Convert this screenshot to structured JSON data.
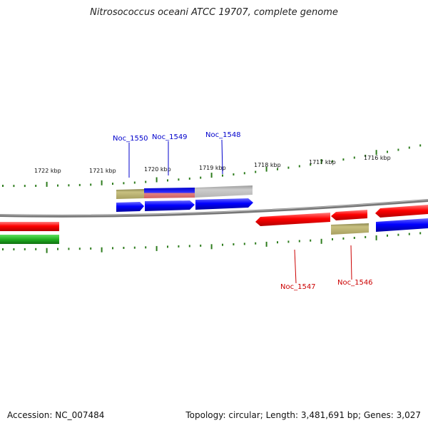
{
  "title": "Nitrosococcus oceani ATCC 19707, complete genome",
  "accession": "Accession: NC_007484",
  "genome_info": "Topology: circular; Length: 3,481,691 bp; Genes: 3,027",
  "colors": {
    "forward_label": "#0000cc",
    "reverse_label": "#cc0000",
    "tick": "#2e7d1e",
    "backbone": "#888888"
  },
  "scale_labels": [
    "1722 kbp",
    "1721 kbp",
    "1720 kbp",
    "1719 kbp",
    "1718 kbp",
    "1717 kbp",
    "1716 kbp"
  ],
  "gene_labels_top": [
    "Noc_1550",
    "Noc_1549",
    "Noc_1548"
  ],
  "gene_labels_bottom": [
    "Noc_1547",
    "Noc_1546"
  ]
}
